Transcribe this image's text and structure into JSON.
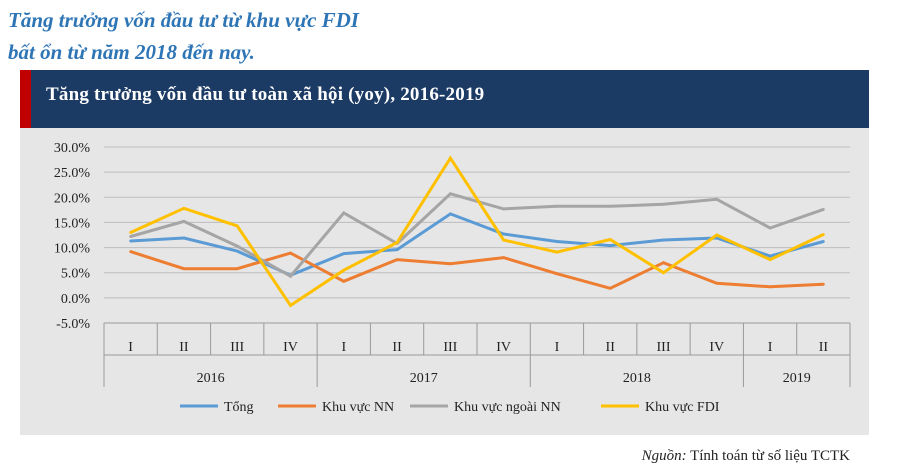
{
  "heading": {
    "line1": "Tăng trưởng vốn đầu tư từ khu vực FDI",
    "line2": "bất ổn từ năm 2018 đến nay."
  },
  "source": {
    "label": "Nguồn:",
    "text": "Tính toán từ số liệu TCTK"
  },
  "colors": {
    "banner": "#1b3a64",
    "accent": "#c00000",
    "heading": "#2e75b6"
  },
  "chart_data": {
    "type": "line",
    "title": "Tăng trưởng vốn đầu tư toàn xã hội (yoy), 2016-2019",
    "categories": [
      "I",
      "II",
      "III",
      "IV",
      "I",
      "II",
      "III",
      "IV",
      "I",
      "II",
      "III",
      "IV",
      "I",
      "II"
    ],
    "groups": [
      {
        "label": "2016",
        "count": 4
      },
      {
        "label": "2017",
        "count": 4
      },
      {
        "label": "2018",
        "count": 4
      },
      {
        "label": "2019",
        "count": 2
      }
    ],
    "ylim": [
      -5,
      30
    ],
    "yticks": [
      "-5.0%",
      "0.0%",
      "5.0%",
      "10.0%",
      "15.0%",
      "20.0%",
      "25.0%",
      "30.0%"
    ],
    "grid": true,
    "legend_position": "bottom",
    "series": [
      {
        "name": "Tổng",
        "color": "#5b9bd5",
        "values": [
          11.3,
          11.9,
          9.3,
          4.5,
          8.8,
          9.6,
          16.7,
          12.7,
          11.2,
          10.4,
          11.5,
          11.9,
          8.3,
          11.2
        ]
      },
      {
        "name": "Khu vực NN",
        "color": "#ed7d31",
        "values": [
          9.2,
          5.8,
          5.8,
          8.9,
          3.3,
          7.6,
          6.8,
          8.0,
          4.8,
          1.9,
          7.0,
          2.9,
          2.2,
          2.7
        ]
      },
      {
        "name": "Khu vực ngoài NN",
        "color": "#a5a5a5",
        "values": [
          12.2,
          15.2,
          10.3,
          4.3,
          16.9,
          10.8,
          20.7,
          17.7,
          18.2,
          18.2,
          18.6,
          19.6,
          13.9,
          17.6
        ]
      },
      {
        "name": "Khu vực FDI",
        "color": "#ffc000",
        "values": [
          13.0,
          17.8,
          14.3,
          -1.5,
          5.5,
          11.0,
          27.8,
          11.5,
          9.1,
          11.6,
          5.0,
          12.5,
          7.6,
          12.6
        ]
      }
    ]
  }
}
